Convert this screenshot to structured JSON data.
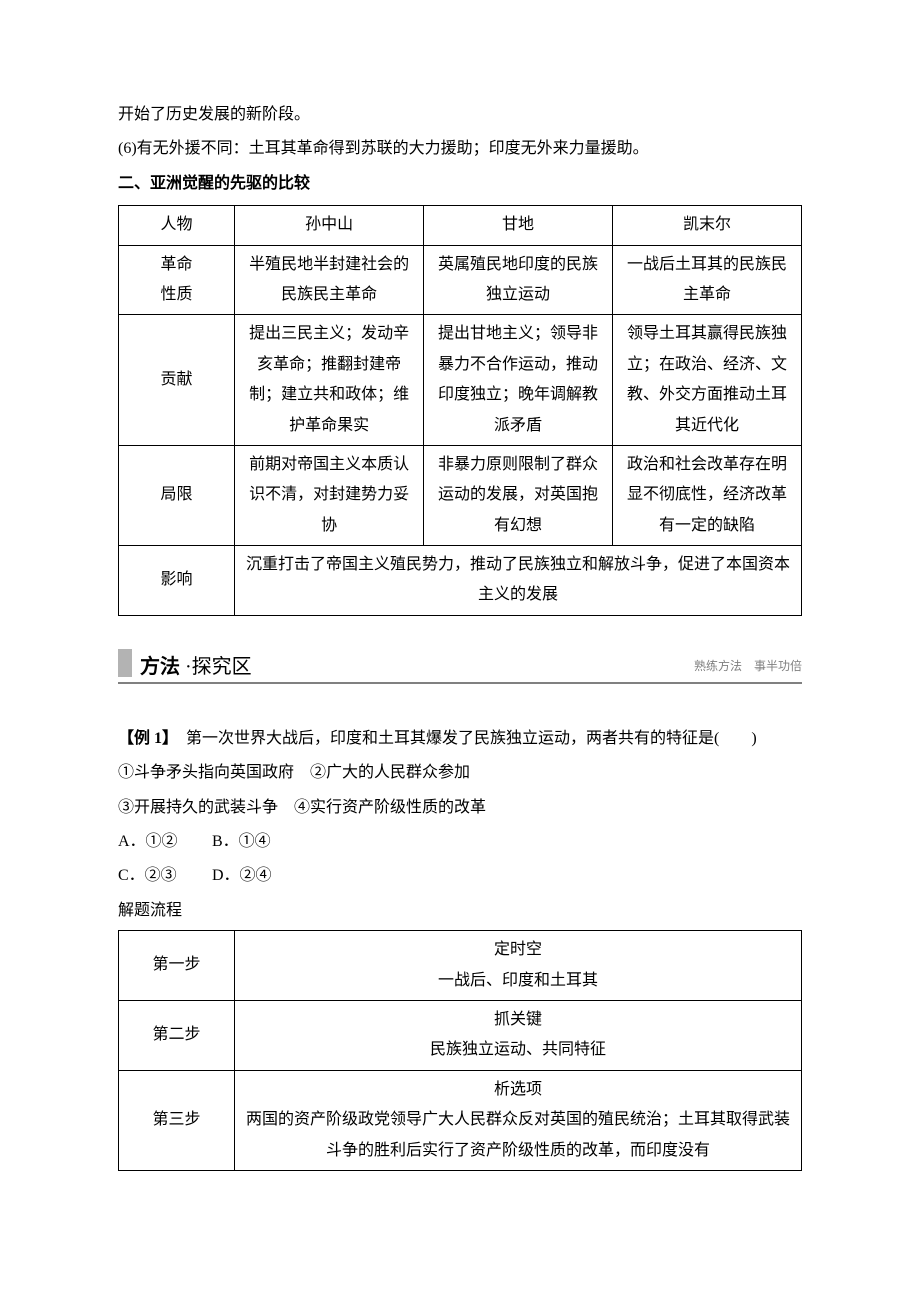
{
  "top_paras": {
    "p1": "开始了历史发展的新阶段。",
    "p2": "(6)有无外援不同：土耳其革命得到苏联的大力援助；印度无外来力量援助。"
  },
  "heading2": "二、亚洲觉醒的先驱的比较",
  "table1": {
    "header": {
      "c0": "人物",
      "c1": "孙中山",
      "c2": "甘地",
      "c3": "凯末尔"
    },
    "rows": {
      "nature": {
        "label": "革命\n性质",
        "c1": "半殖民地半封建社会的民族民主革命",
        "c2": "英属殖民地印度的民族独立运动",
        "c3": "一战后土耳其的民族民主革命"
      },
      "contribution": {
        "label": "贡献",
        "c1": "提出三民主义；发动辛亥革命；推翻封建帝制；建立共和政体；维护革命果实",
        "c2": "提出甘地主义；领导非暴力不合作运动，推动印度独立；晚年调解教派矛盾",
        "c3": "领导土耳其赢得民族独立；在政治、经济、文教、外交方面推动土耳其近代化"
      },
      "limit": {
        "label": "局限",
        "c1": "前期对帝国主义本质认识不清，对封建势力妥协",
        "c2": "非暴力原则限制了群众运动的发展，对英国抱有幻想",
        "c3": "政治和社会改革存在明显不彻底性，经济改革有一定的缺陷"
      },
      "influence": {
        "label": "影响",
        "merged": "沉重打击了帝国主义殖民势力，推动了民族独立和解放斗争，促进了本国资本主义的发展"
      }
    }
  },
  "section_bar": {
    "title_bold": "方法",
    "title_rest": " ·探究区",
    "sub": "熟练方法　事半功倍"
  },
  "example": {
    "label": "【例 1】",
    "stem": "　第一次世界大战后，印度和土耳其爆发了民族独立运动，两者共有的特征是(　　)",
    "stems2": "①斗争矛头指向英国政府　②广大的人民群众参加",
    "stems3": "③开展持久的武装斗争　④实行资产阶级性质的改革",
    "optA": "A．①②",
    "optB": "B．①④",
    "optC": "C．②③",
    "optD": "D．②④"
  },
  "flow_heading": "解题流程",
  "flow": {
    "r1": {
      "label": "第一步",
      "line1": "定时空",
      "line2": "一战后、印度和土耳其"
    },
    "r2": {
      "label": "第二步",
      "line1": "抓关键",
      "line2": "民族独立运动、共同特征"
    },
    "r3": {
      "label": "第三步",
      "line1": "析选项",
      "line2": "两国的资产阶级政党领导广大人民群众反对英国的殖民统治；土耳其取得武装斗争的胜利后实行了资产阶级性质的改革，而印度没有"
    }
  },
  "colors": {
    "text": "#000000",
    "border": "#000000",
    "accent_block": "#b3b3b3",
    "subtext": "#808080",
    "underline": "#808080",
    "background": "#ffffff"
  },
  "fontsize": {
    "body": 16,
    "section_title": 20,
    "sub": 12
  }
}
